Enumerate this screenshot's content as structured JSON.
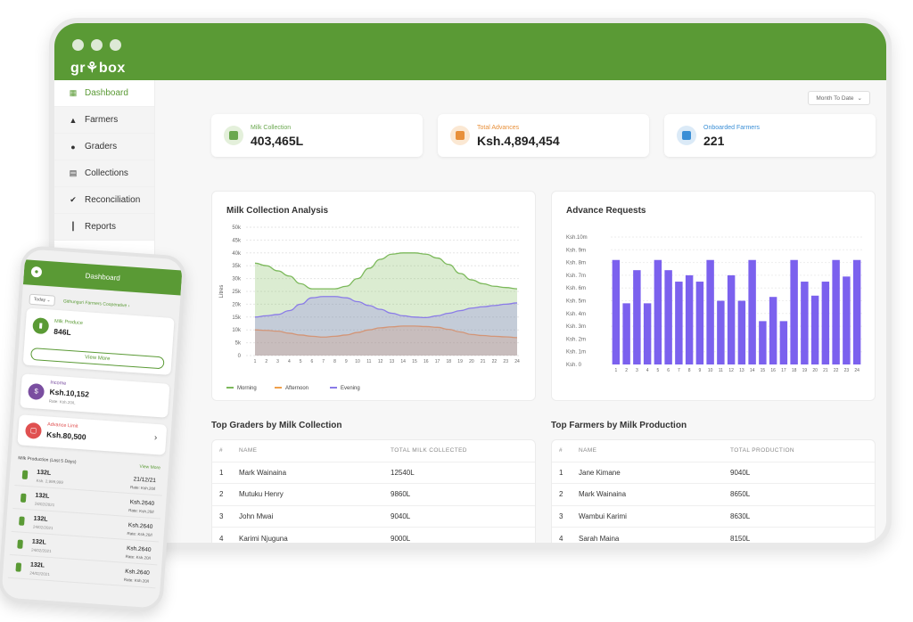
{
  "app": {
    "logo": "gr⚘box",
    "period": "Month To Date",
    "sidebar": [
      {
        "label": "Dashboard",
        "icon": "dashboard-icon",
        "glyph": "▦",
        "active": true
      },
      {
        "label": "Farmers",
        "icon": "user-icon",
        "glyph": "▲"
      },
      {
        "label": "Graders",
        "icon": "group-icon",
        "glyph": "●"
      },
      {
        "label": "Collections",
        "icon": "bucket-icon",
        "glyph": "▤"
      },
      {
        "label": "Reconciliation",
        "icon": "check-badge-icon",
        "glyph": "✔"
      },
      {
        "label": "Reports",
        "icon": "bar-chart-icon",
        "glyph": "┃"
      }
    ],
    "stats": [
      {
        "label": "Milk Collection",
        "value": "403,465L",
        "color": "#6aa84f",
        "bg": "#e4f0db",
        "icon": "milk-can-icon"
      },
      {
        "label": "Total Advances",
        "value": "Ksh.4,894,454",
        "color": "#e8903a",
        "bg": "#fbe8d3",
        "icon": "wallet-icon"
      },
      {
        "label": "Onboarded Farmers",
        "value": "221",
        "color": "#3b8fd6",
        "bg": "#dbeaf7",
        "icon": "farmer-card-icon"
      }
    ],
    "milk_chart_title": "Milk Collection Analysis",
    "advance_chart_title": "Advance Requests",
    "graders_title": "Top Graders by Milk Collection",
    "graders_headers": [
      "#",
      "NAME",
      "TOTAL MILK COLLECTED"
    ],
    "graders": [
      [
        "1",
        "Mark Wainaina",
        "12540L"
      ],
      [
        "2",
        "Mutuku Henry",
        "9860L"
      ],
      [
        "3",
        "John Mwai",
        "9040L"
      ],
      [
        "4",
        "Karimi Njuguna",
        "9000L"
      ]
    ],
    "farmers_title": "Top Farmers by Milk Production",
    "farmers_headers": [
      "#",
      "NAME",
      "TOTAL PRODUCTION"
    ],
    "farmers": [
      [
        "1",
        "Jane Kimane",
        "9040L"
      ],
      [
        "2",
        "Mark Wainaina",
        "8650L"
      ],
      [
        "3",
        "Wambui Karimi",
        "8630L"
      ],
      [
        "4",
        "Sarah Maina",
        "8150L"
      ]
    ]
  },
  "phone": {
    "title": "Dashboard",
    "filter": "Today ⌄",
    "coop": "Githunguri Farmers Cooperative ›",
    "milk_label": "Milk Produce",
    "milk_value": "846L",
    "view_more": "View More",
    "income_label": "Income",
    "income_value": "Ksh.10,152",
    "income_rate": "Rate: Ksh.20/L",
    "advance_label": "Advance Limit",
    "advance_value": "Ksh.80,500",
    "list_title": "Milk Production (Last 5 Days)",
    "list_more": "View More",
    "rows": [
      {
        "qty": "132L",
        "sub": "Ksh. 2,999,999",
        "price": "21/12/21",
        "rate": "Rate: Ksh.20/l"
      },
      {
        "qty": "132L",
        "sub": "24/02/2021",
        "price": "Ksh.2640",
        "rate": "Rate: Ksh.20/l"
      },
      {
        "qty": "132L",
        "sub": "24/02/2021",
        "price": "Ksh.2640",
        "rate": "Rate: Ksh.20/l"
      },
      {
        "qty": "132L",
        "sub": "24/02/2021",
        "price": "Ksh.2640",
        "rate": "Rate: Ksh.20/l"
      },
      {
        "qty": "132L",
        "sub": "24/02/2021",
        "price": "Ksh.2640",
        "rate": "Rate: Ksh.20/l"
      }
    ]
  },
  "chart_data": [
    {
      "type": "area",
      "title": "Milk Collection Analysis",
      "ylabel": "Litres",
      "xlabel": "",
      "x": [
        1,
        2,
        3,
        4,
        5,
        6,
        7,
        8,
        9,
        10,
        11,
        12,
        13,
        14,
        15,
        16,
        17,
        18,
        19,
        20,
        21,
        22,
        23,
        24
      ],
      "ylim": [
        0,
        50000
      ],
      "yticks": [
        "0",
        "5k",
        "10k",
        "15k",
        "20k",
        "25k",
        "30k",
        "35k",
        "40k",
        "45k",
        "50k"
      ],
      "legend": "bottom-left",
      "series": [
        {
          "name": "Morning",
          "color": "#7cb95b",
          "values": [
            36000,
            35000,
            33000,
            31000,
            28000,
            26000,
            26000,
            26000,
            27000,
            30000,
            34000,
            37500,
            39500,
            40000,
            40000,
            39500,
            38000,
            35500,
            32000,
            29500,
            28000,
            27000,
            26500,
            26000
          ]
        },
        {
          "name": "Afternoon",
          "color": "#f0a04b",
          "values": [
            10000,
            9800,
            9500,
            8700,
            8000,
            7500,
            7200,
            7500,
            8000,
            9000,
            10000,
            10800,
            11200,
            11500,
            11500,
            11300,
            11000,
            10200,
            9200,
            8200,
            7800,
            7500,
            7300,
            7000
          ]
        },
        {
          "name": "Evening",
          "color": "#8a7be8",
          "values": [
            15000,
            15500,
            16000,
            17500,
            20000,
            22500,
            23000,
            23000,
            22500,
            21000,
            19500,
            18000,
            16500,
            15500,
            15000,
            14800,
            15500,
            16500,
            17500,
            18500,
            19000,
            19500,
            20000,
            20500
          ]
        }
      ]
    },
    {
      "type": "bar",
      "title": "Advance Requests",
      "categories": [
        "1",
        "2",
        "3",
        "4",
        "5",
        "6",
        "7",
        "8",
        "9",
        "10",
        "11",
        "12",
        "13",
        "14",
        "15",
        "16",
        "17",
        "18",
        "19",
        "20",
        "21",
        "22",
        "23",
        "24"
      ],
      "ylim": [
        0,
        10
      ],
      "yticks": [
        "Ksh.   0",
        "Ksh.  1m",
        "Ksh.  2m",
        "Ksh.  3m",
        "Ksh.  4m",
        "Ksh.  5m",
        "Ksh.  6m",
        "Ksh.  7m",
        "Ksh.  8m",
        "Ksh.  9m",
        "Ksh.10m"
      ],
      "color": "#7b61ee",
      "values": [
        8.2,
        4.8,
        7.4,
        4.8,
        8.2,
        7.4,
        6.5,
        7.0,
        6.5,
        8.2,
        5.0,
        7.0,
        5.0,
        8.2,
        3.4,
        5.3,
        3.4,
        8.2,
        6.5,
        5.4,
        6.5,
        8.2,
        6.9,
        8.2
      ]
    }
  ]
}
